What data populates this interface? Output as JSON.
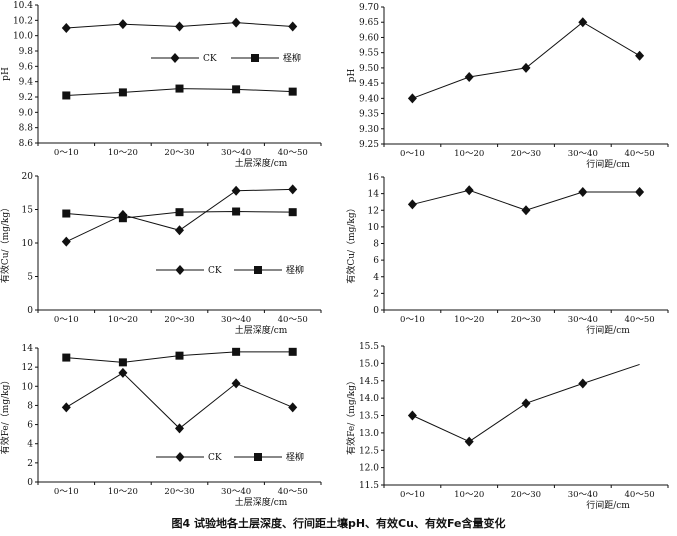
{
  "figure": {
    "caption": "图4  试验地各土层深度、行间距土壤pH、有效Cu、有效Fe含量变化"
  },
  "chart_data": [
    {
      "id": "ph-depth",
      "type": "line",
      "ylabel": "pH",
      "xlabel": "土层深度/cm",
      "categories": [
        "0～10",
        "10～20",
        "20～30",
        "30～40",
        "40～50"
      ],
      "ylim": [
        8.6,
        10.4
      ],
      "yticks": [
        "8.6",
        "8.8",
        "9.0",
        "9.2",
        "9.4",
        "9.6",
        "9.8",
        "10.0",
        "10.2",
        "10.4"
      ],
      "legend_position": "top-right",
      "series": [
        {
          "name": "CK",
          "marker": "diamond",
          "values": [
            10.1,
            10.15,
            10.12,
            10.17,
            10.12
          ]
        },
        {
          "name": "柽柳",
          "marker": "square",
          "values": [
            9.22,
            9.26,
            9.31,
            9.3,
            9.27
          ]
        }
      ]
    },
    {
      "id": "ph-row",
      "type": "line",
      "ylabel": "pH",
      "xlabel": "行间距/cm",
      "categories": [
        "0～10",
        "10～20",
        "20～30",
        "30～40",
        "40～50"
      ],
      "ylim": [
        9.25,
        9.7
      ],
      "yticks": [
        "9.25",
        "9.30",
        "9.35",
        "9.40",
        "9.45",
        "9.50",
        "9.55",
        "9.60",
        "9.65",
        "9.70"
      ],
      "series": [
        {
          "marker": "diamond",
          "values": [
            9.4,
            9.47,
            9.5,
            9.65,
            9.54
          ]
        }
      ]
    },
    {
      "id": "cu-depth",
      "type": "line",
      "ylabel": "有效Cu/（mg/kg）",
      "xlabel": "土层深度/cm",
      "categories": [
        "0～10",
        "10～20",
        "20～30",
        "30～40",
        "40～50"
      ],
      "ylim": [
        0,
        20
      ],
      "yticks": [
        "0",
        "5",
        "10",
        "15",
        "20"
      ],
      "legend_position": "bottom-center",
      "series": [
        {
          "name": "CK",
          "marker": "diamond",
          "values": [
            10.2,
            14.2,
            11.9,
            17.8,
            18.0
          ]
        },
        {
          "name": "柽柳",
          "marker": "square",
          "values": [
            14.4,
            13.7,
            14.6,
            14.7,
            14.6
          ]
        }
      ]
    },
    {
      "id": "cu-row",
      "type": "line",
      "ylabel": "有效Cu/（mg/kg）",
      "xlabel": "行间距/cm",
      "categories": [
        "0～10",
        "10～20",
        "20～30",
        "30～40",
        "40～50"
      ],
      "ylim": [
        0,
        16
      ],
      "yticks": [
        "0",
        "2",
        "4",
        "6",
        "8",
        "10",
        "12",
        "14",
        "16"
      ],
      "series": [
        {
          "marker": "diamond",
          "values": [
            12.7,
            14.4,
            12.0,
            14.2,
            14.2
          ]
        }
      ]
    },
    {
      "id": "fe-depth",
      "type": "line",
      "ylabel": "有效Fe/（mg/kg）",
      "xlabel": "土层深度/cm",
      "categories": [
        "0～10",
        "10～20",
        "20～30",
        "30～40",
        "40～50"
      ],
      "ylim": [
        0,
        14
      ],
      "yticks": [
        "0",
        "2",
        "4",
        "6",
        "8",
        "10",
        "12",
        "14"
      ],
      "legend_position": "bottom-center",
      "series": [
        {
          "name": "CK",
          "marker": "diamond",
          "values": [
            7.8,
            11.4,
            5.6,
            10.3,
            7.8
          ]
        },
        {
          "name": "柽柳",
          "marker": "square",
          "values": [
            13.0,
            12.5,
            13.2,
            13.6,
            13.6
          ]
        }
      ]
    },
    {
      "id": "fe-row",
      "type": "line",
      "ylabel": "有效Fe/（mg/kg）",
      "xlabel": "行间距/cm",
      "categories": [
        "0～10",
        "10～20",
        "20～30",
        "30～40",
        "40～50"
      ],
      "ylim": [
        11.5,
        15.5
      ],
      "yticks": [
        "11.5",
        "12.0",
        "12.5",
        "13.0",
        "13.5",
        "14.0",
        "14.5",
        "15.0",
        "15.5"
      ],
      "series": [
        {
          "marker": "diamond",
          "values": [
            13.5,
            12.75,
            13.85,
            14.42,
            14.97
          ],
          "last_point_marker": false
        }
      ]
    }
  ]
}
